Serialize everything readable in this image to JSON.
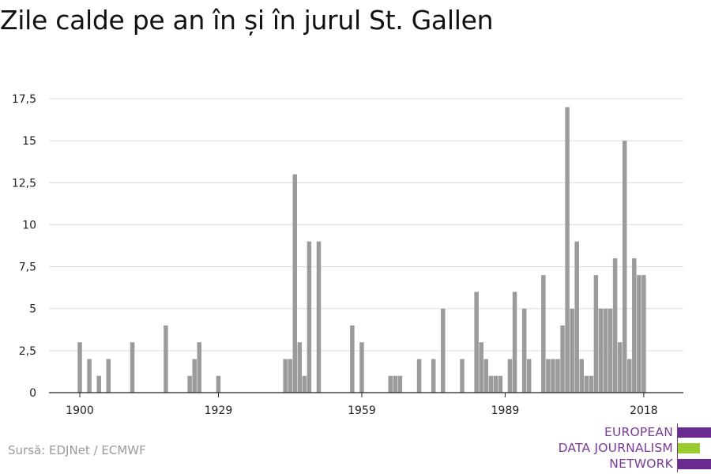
{
  "title": "Zile calde pe an în și în jurul St. Gallen",
  "source": "Sursă: EDJNet / ECMWF",
  "logo": {
    "line1": "EUROPEAN",
    "line2": "DATA JOURNALISM",
    "line3": "NETWORK",
    "colors": {
      "purple": "#6a2c91",
      "green": "#98cc2f",
      "text": "#7b3a96"
    }
  },
  "chart_data": {
    "type": "bar",
    "title": "Zile calde pe an în și în jurul St. Gallen",
    "xlabel": "",
    "ylabel": "",
    "xlim": [
      1900,
      2018
    ],
    "ylim": [
      0,
      17.5
    ],
    "x_ticks": [
      1900,
      1929,
      1959,
      1989,
      2018
    ],
    "x_tick_labels": [
      "1900",
      "1929",
      "1959",
      "1989",
      "2018"
    ],
    "y_ticks": [
      0,
      2.5,
      5,
      7.5,
      10,
      12.5,
      15,
      17.5
    ],
    "y_tick_labels": [
      "0",
      "2,5",
      "5",
      "7,5",
      "10",
      "12,5",
      "15",
      "17,5"
    ],
    "grid": true,
    "bar_color": "#9b9b9b",
    "x": [
      1900,
      1902,
      1904,
      1906,
      1911,
      1918,
      1923,
      1924,
      1925,
      1929,
      1943,
      1944,
      1945,
      1946,
      1947,
      1948,
      1950,
      1957,
      1959,
      1965,
      1966,
      1967,
      1971,
      1974,
      1976,
      1980,
      1983,
      1984,
      1985,
      1986,
      1987,
      1988,
      1990,
      1991,
      1993,
      1994,
      1997,
      1998,
      1999,
      2000,
      2001,
      2002,
      2003,
      2004,
      2005,
      2006,
      2007,
      2008,
      2009,
      2010,
      2011,
      2012,
      2013,
      2014,
      2015,
      2016,
      2017,
      2018
    ],
    "values": [
      3,
      2,
      1,
      2,
      3,
      4,
      1,
      2,
      3,
      1,
      2,
      2,
      13,
      3,
      1,
      9,
      9,
      4,
      3,
      1,
      1,
      1,
      2,
      2,
      5,
      2,
      6,
      3,
      2,
      1,
      1,
      1,
      2,
      6,
      5,
      2,
      7,
      2,
      2,
      2,
      4,
      17,
      5,
      9,
      2,
      1,
      1,
      7,
      5,
      5,
      5,
      8,
      3,
      15,
      2,
      8,
      7,
      7
    ]
  }
}
